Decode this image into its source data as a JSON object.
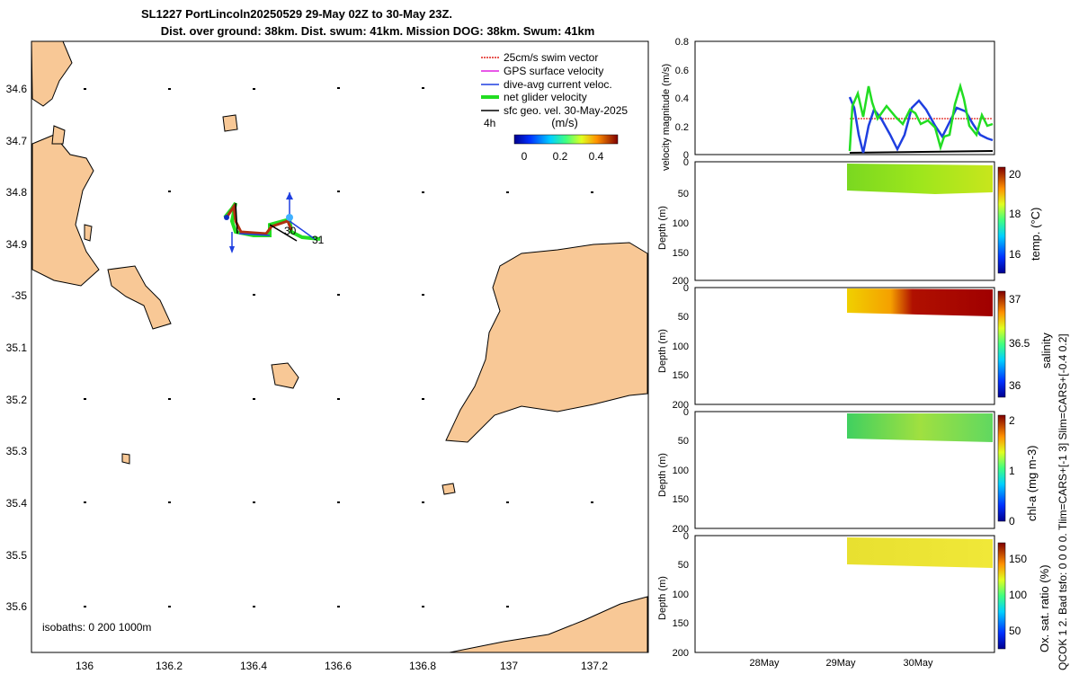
{
  "title": {
    "line1": "SL1227 PortLincoln20250529 29-May 02Z to 30-May 23Z.",
    "line2": "Dist. over ground: 38km. Dist. swum: 41km. Mission DOG: 38km. Swum: 41km"
  },
  "map": {
    "lon_ticks": [
      "136",
      "136.2",
      "136.4",
      "136.6",
      "136.8",
      "137",
      "137.2"
    ],
    "lat_ticks": [
      "34.6",
      "34.7",
      "34.8",
      "34.9",
      "-35",
      "35.1",
      "35.2",
      "35.3",
      "35.4",
      "35.5",
      "35.6"
    ],
    "isobaths_label": "isobaths: 0   200   1000m",
    "legend": [
      {
        "label": "25cm/s swim vector",
        "color": "#e0201b",
        "style": "dotted"
      },
      {
        "label": "GPS surface velocity",
        "color": "#e020e0",
        "style": "solid"
      },
      {
        "label": "dive-avg current veloc.",
        "color": "#1f3fe0",
        "style": "solid"
      },
      {
        "label": "net glider velocity",
        "color": "#22dd22",
        "style": "thick"
      },
      {
        "label": "sfc geo. vel. 30-May-2025",
        "color": "#000000",
        "style": "solid"
      }
    ],
    "legend_extra": "4h",
    "colorbar": {
      "title": "(m/s)",
      "ticks": [
        "0",
        "0.2",
        "0.4"
      ]
    },
    "track_labels": [
      "30",
      "31"
    ],
    "land_color": "#f8c896"
  },
  "right_panels": {
    "velocity": {
      "ylabel": "velocity magnitude (m/s)",
      "yticks": [
        "0",
        "0.2",
        "0.4",
        "0.6",
        "0.8"
      ],
      "series": [
        {
          "name": "dive-avg current",
          "color": "#1f3fe0"
        },
        {
          "name": "net glider velocity",
          "color": "#22dd22"
        },
        {
          "name": "swim vector",
          "color": "#e0201b"
        },
        {
          "name": "sfc geo",
          "color": "#000000"
        }
      ]
    },
    "depth_yticks": [
      "0",
      "50",
      "100",
      "150",
      "200"
    ],
    "depth_ylabel": "Depth (m)",
    "temp": {
      "label": "temp. (°C)",
      "ticks": [
        "16",
        "18",
        "20"
      ]
    },
    "salinity": {
      "label": "salinity",
      "ticks": [
        "36",
        "36.5",
        "37"
      ]
    },
    "chla": {
      "label": "chl-a (mg m-3)",
      "ticks": [
        "0",
        "1",
        "2"
      ]
    },
    "oxygen": {
      "label": "Ox. sat. ratio (%)",
      "ticks": [
        "50",
        "100",
        "150"
      ]
    },
    "x_ticks": [
      "28May",
      "29May",
      "30May"
    ],
    "side_note_1": "QCOK 1  2. Bad tsfo: 0  0  0  0. Tlim=CARS+[-1 3] Slim=CARS+[-0.4 0.2]"
  }
}
